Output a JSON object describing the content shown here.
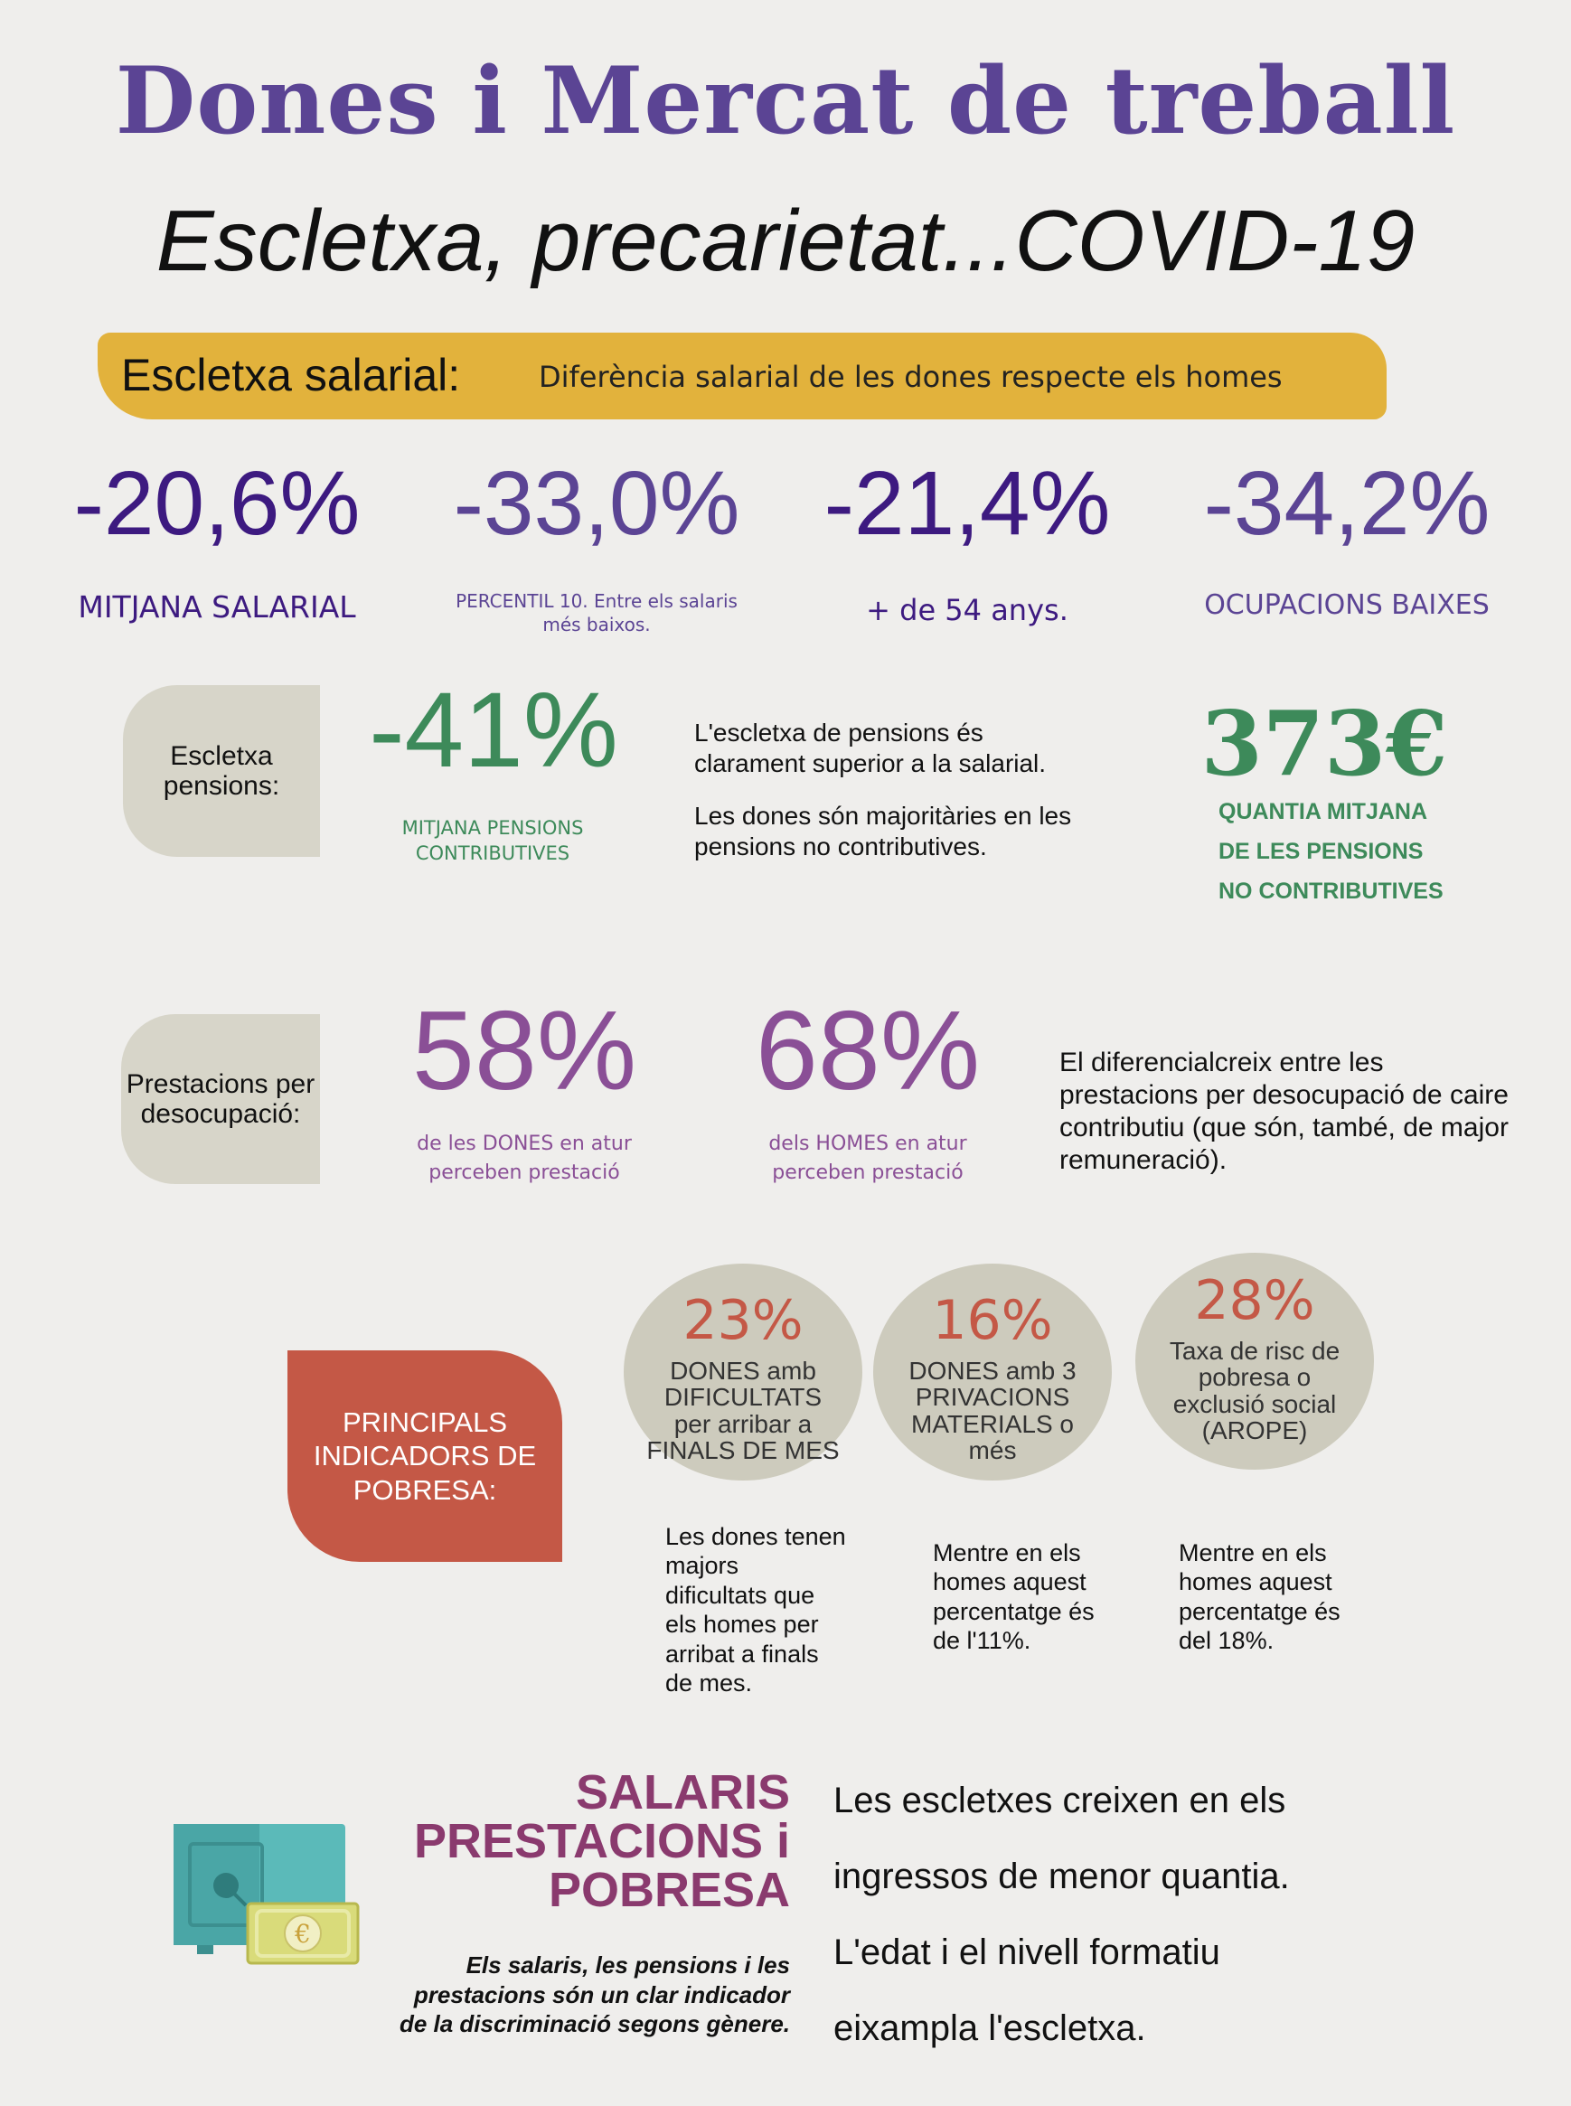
{
  "header": {
    "title": "Dones i Mercat de treball",
    "subtitle": "Escletxa, precarietat...COVID-19"
  },
  "salary_gap": {
    "label": "Escletxa salarial:",
    "description": "Diferència salarial de les dones respecte els homes",
    "stats": [
      {
        "value": "-20,6%",
        "label": "MITJANA SALARIAL",
        "color": "#3d1a80"
      },
      {
        "value": "-33,0%",
        "label": "PERCENTIL 10. Entre els salaris més baixos.",
        "color": "#5b4494"
      },
      {
        "value": "-21,4%",
        "label": "+ de 54 anys.",
        "color": "#3d1a80"
      },
      {
        "value": "-34,2%",
        "label": "OCUPACIONS BAIXES",
        "color": "#5b4494"
      }
    ]
  },
  "pensions": {
    "tab": "Escletxa pensions:",
    "value": "-41%",
    "label": "MITJANA PENSIONS CONTRIBUTIVES",
    "text1": "L'escletxa de pensions és clarament superior a la salarial.",
    "text2": "Les dones són majoritàries en les pensions no contributives.",
    "amount": "373€",
    "amount_label_1": "QUANTIA MITJANA",
    "amount_label_2": "DE LES PENSIONS",
    "amount_label_3": "NO CONTRIBUTIVES",
    "color": "#3d8a5a"
  },
  "unemployment": {
    "tab": "Prestacions per desocupació:",
    "women_value": "58%",
    "women_label": "de les DONES en atur perceben prestació",
    "men_value": "68%",
    "men_label": "dels HOMES en atur perceben prestació",
    "text": "El diferencialcreix entre les prestacions per desocupació de caire contributiu (que són, també, de major remuneració).",
    "color": "#8a4f96"
  },
  "poverty": {
    "tab": "PRINCIPALS INDICADORS DE POBRESA:",
    "tab_color": "#c45846",
    "circles": [
      {
        "value": "23%",
        "desc": "DONES  amb DIFICULTATS per arribar a FINALS DE MES",
        "note": "Les dones tenen majors dificultats que els homes per arribat a finals de mes."
      },
      {
        "value": "16%",
        "desc": "DONES amb 3 PRIVACIONS MATERIALS o més",
        "note": "Mentre en els homes aquest percentatge és de l'11%."
      },
      {
        "value": "28%",
        "desc": "Taxa de risc de pobresa o exclusió social (AROPE)",
        "note": "Mentre en els homes aquest percentatge és del 18%."
      }
    ]
  },
  "footer": {
    "heading_1": "SALARIS",
    "heading_2": "PRESTACIONS i",
    "heading_3": "POBRESA",
    "heading_color": "#8a3a6e",
    "caption": "Els salaris, les pensions i les prestacions són un clar indicador de la discriminació segons gènere.",
    "line_1": "Les escletxes creixen en els",
    "line_2": "ingressos de menor quantia.",
    "line_3": "L'edat i el nivell formatiu",
    "line_4": "eixampla l'escletxa.",
    "safe_icon": "safe-icon",
    "banknote_icon": "euro-banknote-icon",
    "currency_symbol": "€"
  }
}
